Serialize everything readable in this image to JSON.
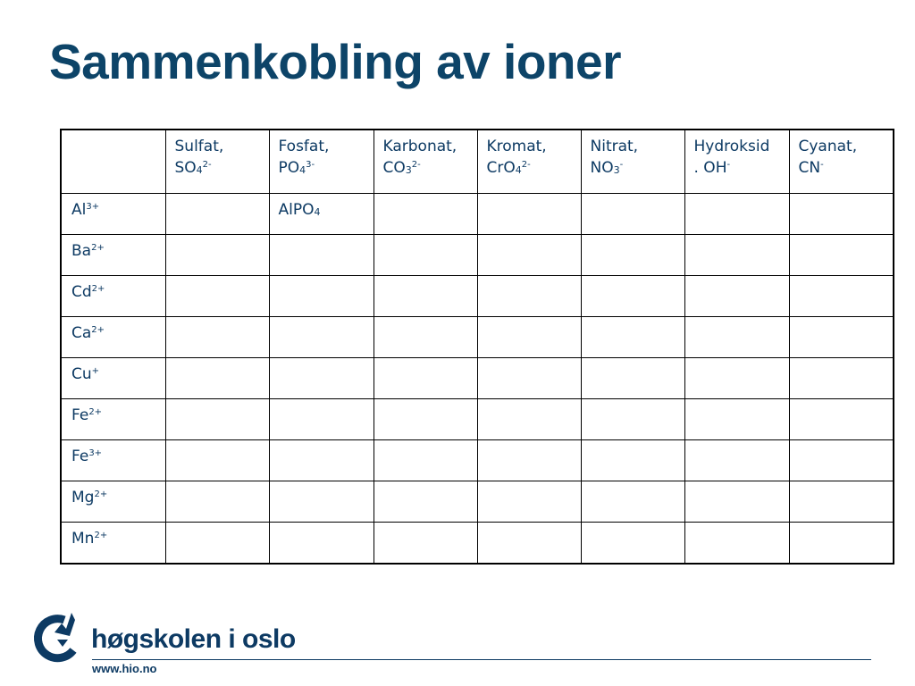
{
  "slide": {
    "title": "Sammenkobling av ioner"
  },
  "table": {
    "headers": [
      {
        "name": "Sulfat,",
        "formula": "SO",
        "sub": "4",
        "sup": "2-"
      },
      {
        "name": "Fosfat,",
        "formula": "PO",
        "sub": "4",
        "sup": "3-"
      },
      {
        "name": "Karbonat,",
        "formula": "CO",
        "sub": "3",
        "sup": "2-"
      },
      {
        "name": "Kromat,",
        "formula": "CrO",
        "sub": "4",
        "sup": "2-"
      },
      {
        "name": "Nitrat,",
        "formula": "NO",
        "sub": "3",
        "sup": "-"
      },
      {
        "name": "Hydroksid",
        "formula": ". OH",
        "sub": "",
        "sup": "-"
      },
      {
        "name": "Cyanat,",
        "formula": "CN",
        "sub": "",
        "sup": "-"
      }
    ],
    "rows": [
      {
        "ion": "Al",
        "charge": "3+",
        "cells": [
          "",
          "AlPO",
          "",
          "",
          "",
          "",
          ""
        ],
        "cell_sub": [
          "",
          "4",
          "",
          "",
          "",
          "",
          ""
        ]
      },
      {
        "ion": "Ba",
        "charge": "2+",
        "cells": [
          "",
          "",
          "",
          "",
          "",
          "",
          ""
        ],
        "cell_sub": [
          "",
          "",
          "",
          "",
          "",
          "",
          ""
        ]
      },
      {
        "ion": "Cd",
        "charge": "2+",
        "cells": [
          "",
          "",
          "",
          "",
          "",
          "",
          ""
        ],
        "cell_sub": [
          "",
          "",
          "",
          "",
          "",
          "",
          ""
        ]
      },
      {
        "ion": "Ca",
        "charge": "2+",
        "cells": [
          "",
          "",
          "",
          "",
          "",
          "",
          ""
        ],
        "cell_sub": [
          "",
          "",
          "",
          "",
          "",
          "",
          ""
        ]
      },
      {
        "ion": "Cu",
        "charge": "+",
        "cells": [
          "",
          "",
          "",
          "",
          "",
          "",
          ""
        ],
        "cell_sub": [
          "",
          "",
          "",
          "",
          "",
          "",
          ""
        ]
      },
      {
        "ion": "Fe",
        "charge": "2+",
        "cells": [
          "",
          "",
          "",
          "",
          "",
          "",
          ""
        ],
        "cell_sub": [
          "",
          "",
          "",
          "",
          "",
          "",
          ""
        ]
      },
      {
        "ion": "Fe",
        "charge": "3+",
        "cells": [
          "",
          "",
          "",
          "",
          "",
          "",
          ""
        ],
        "cell_sub": [
          "",
          "",
          "",
          "",
          "",
          "",
          ""
        ]
      },
      {
        "ion": "Mg",
        "charge": "2+",
        "cells": [
          "",
          "",
          "",
          "",
          "",
          "",
          ""
        ],
        "cell_sub": [
          "",
          "",
          "",
          "",
          "",
          "",
          ""
        ]
      },
      {
        "ion": "Mn",
        "charge": "2+",
        "cells": [
          "",
          "",
          "",
          "",
          "",
          "",
          ""
        ],
        "cell_sub": [
          "",
          "",
          "",
          "",
          "",
          "",
          ""
        ]
      }
    ]
  },
  "footer": {
    "brand": "høgskolen i oslo",
    "url": "www.hio.no",
    "logo_icon": "hio-logo-icon"
  },
  "colors": {
    "title": "#0d4468",
    "text": "#0d3a63"
  }
}
